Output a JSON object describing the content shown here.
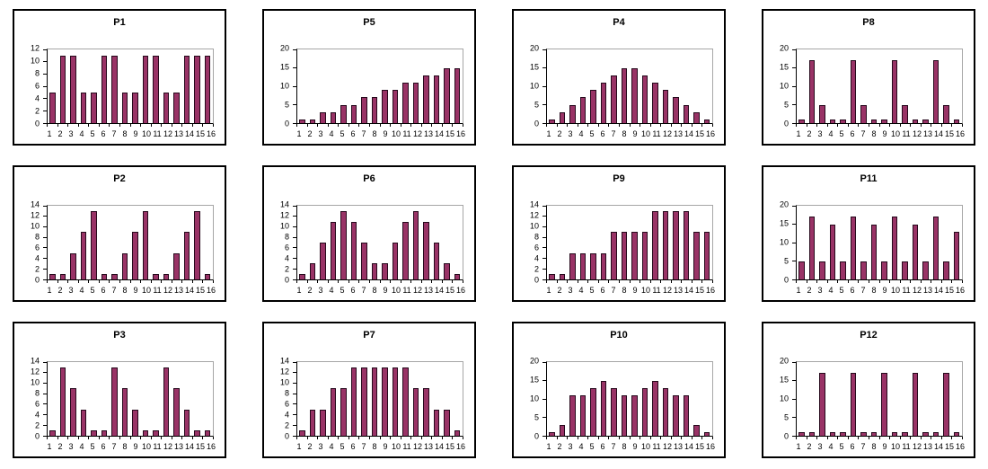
{
  "figure": {
    "description": "Grid of twelve small bar charts labeled P1 through P12",
    "columns": 4,
    "rows": 3,
    "colors": {
      "bar_fill": "#993366",
      "bar_border": "#26091c",
      "axis": "#000000",
      "plot_frame": "#a6a6a6",
      "panel_border": "#000000",
      "background": "#ffffff"
    }
  },
  "chart_data": [
    {
      "type": "bar",
      "title": "P1",
      "categories": [
        "1",
        "2",
        "3",
        "4",
        "5",
        "6",
        "7",
        "8",
        "9",
        "10",
        "11",
        "12",
        "13",
        "14",
        "15",
        "16"
      ],
      "values": [
        5,
        11,
        11,
        5,
        5,
        11,
        11,
        5,
        5,
        11,
        11,
        5,
        5,
        11,
        11,
        11
      ],
      "ylim": [
        0,
        12
      ],
      "yticks": [
        0,
        2,
        4,
        6,
        8,
        10,
        12
      ],
      "xlabel": "",
      "ylabel": "",
      "grid": false,
      "legend": false
    },
    {
      "type": "bar",
      "title": "P5",
      "categories": [
        "1",
        "2",
        "3",
        "4",
        "5",
        "6",
        "7",
        "8",
        "9",
        "10",
        "11",
        "12",
        "13",
        "14",
        "15",
        "16"
      ],
      "values": [
        1,
        1,
        3,
        3,
        5,
        5,
        7,
        7,
        9,
        9,
        11,
        11,
        13,
        13,
        15,
        15
      ],
      "ylim": [
        0,
        20
      ],
      "yticks": [
        0,
        5,
        10,
        15,
        20
      ],
      "xlabel": "",
      "ylabel": "",
      "grid": false,
      "legend": false
    },
    {
      "type": "bar",
      "title": "P4",
      "categories": [
        "1",
        "2",
        "3",
        "4",
        "5",
        "6",
        "7",
        "8",
        "9",
        "10",
        "11",
        "12",
        "13",
        "14",
        "15",
        "16"
      ],
      "values": [
        1,
        3,
        5,
        7,
        9,
        11,
        13,
        15,
        15,
        13,
        11,
        9,
        7,
        5,
        3,
        1
      ],
      "ylim": [
        0,
        20
      ],
      "yticks": [
        0,
        5,
        10,
        15,
        20
      ],
      "xlabel": "",
      "ylabel": "",
      "grid": false,
      "legend": false
    },
    {
      "type": "bar",
      "title": "P8",
      "categories": [
        "1",
        "2",
        "3",
        "4",
        "5",
        "6",
        "7",
        "8",
        "9",
        "10",
        "11",
        "12",
        "13",
        "14",
        "15",
        "16"
      ],
      "values": [
        1,
        17,
        5,
        1,
        1,
        17,
        5,
        1,
        1,
        17,
        5,
        1,
        1,
        17,
        5,
        1
      ],
      "ylim": [
        0,
        20
      ],
      "yticks": [
        0,
        5,
        10,
        15,
        20
      ],
      "xlabel": "",
      "ylabel": "",
      "grid": false,
      "legend": false
    },
    {
      "type": "bar",
      "title": "P2",
      "categories": [
        "1",
        "2",
        "3",
        "4",
        "5",
        "6",
        "7",
        "8",
        "9",
        "10",
        "11",
        "12",
        "13",
        "14",
        "15",
        "16"
      ],
      "values": [
        1,
        1,
        5,
        9,
        13,
        1,
        1,
        5,
        9,
        13,
        1,
        1,
        5,
        9,
        13,
        1
      ],
      "ylim": [
        0,
        14
      ],
      "yticks": [
        0,
        2,
        4,
        6,
        8,
        10,
        12,
        14
      ],
      "xlabel": "",
      "ylabel": "",
      "grid": false,
      "legend": false
    },
    {
      "type": "bar",
      "title": "P6",
      "categories": [
        "1",
        "2",
        "3",
        "4",
        "5",
        "6",
        "7",
        "8",
        "9",
        "10",
        "11",
        "12",
        "13",
        "14",
        "15",
        "16"
      ],
      "values": [
        1,
        3,
        7,
        11,
        13,
        11,
        7,
        3,
        3,
        7,
        11,
        13,
        11,
        7,
        3,
        1
      ],
      "ylim": [
        0,
        14
      ],
      "yticks": [
        0,
        2,
        4,
        6,
        8,
        10,
        12,
        14
      ],
      "xlabel": "",
      "ylabel": "",
      "grid": false,
      "legend": false
    },
    {
      "type": "bar",
      "title": "P9",
      "categories": [
        "1",
        "2",
        "3",
        "4",
        "5",
        "6",
        "7",
        "8",
        "9",
        "10",
        "11",
        "12",
        "13",
        "14",
        "15",
        "16"
      ],
      "values": [
        1,
        1,
        5,
        5,
        5,
        5,
        9,
        9,
        9,
        9,
        13,
        13,
        13,
        13,
        9,
        9
      ],
      "ylim": [
        0,
        14
      ],
      "yticks": [
        0,
        2,
        4,
        6,
        8,
        10,
        12,
        14
      ],
      "xlabel": "",
      "ylabel": "",
      "grid": false,
      "legend": false
    },
    {
      "type": "bar",
      "title": "P11",
      "categories": [
        "1",
        "2",
        "3",
        "4",
        "5",
        "6",
        "7",
        "8",
        "9",
        "10",
        "11",
        "12",
        "13",
        "14",
        "15",
        "16"
      ],
      "values": [
        5,
        17,
        5,
        15,
        5,
        17,
        5,
        15,
        5,
        17,
        5,
        15,
        5,
        17,
        5,
        13
      ],
      "ylim": [
        0,
        20
      ],
      "yticks": [
        0,
        5,
        10,
        15,
        20
      ],
      "xlabel": "",
      "ylabel": "",
      "grid": false,
      "legend": false
    },
    {
      "type": "bar",
      "title": "P3",
      "categories": [
        "1",
        "2",
        "3",
        "4",
        "5",
        "6",
        "7",
        "8",
        "9",
        "10",
        "11",
        "12",
        "13",
        "14",
        "15",
        "16"
      ],
      "values": [
        1,
        13,
        9,
        5,
        1,
        1,
        13,
        9,
        5,
        1,
        1,
        13,
        9,
        5,
        1,
        1
      ],
      "ylim": [
        0,
        14
      ],
      "yticks": [
        0,
        2,
        4,
        6,
        8,
        10,
        12,
        14
      ],
      "xlabel": "",
      "ylabel": "",
      "grid": false,
      "legend": false
    },
    {
      "type": "bar",
      "title": "P7",
      "categories": [
        "1",
        "2",
        "3",
        "4",
        "5",
        "6",
        "7",
        "8",
        "9",
        "10",
        "11",
        "12",
        "13",
        "14",
        "15",
        "16"
      ],
      "values": [
        1,
        5,
        5,
        9,
        9,
        13,
        13,
        13,
        13,
        13,
        13,
        9,
        9,
        5,
        5,
        1
      ],
      "ylim": [
        0,
        14
      ],
      "yticks": [
        0,
        2,
        4,
        6,
        8,
        10,
        12,
        14
      ],
      "xlabel": "",
      "ylabel": "",
      "grid": false,
      "legend": false
    },
    {
      "type": "bar",
      "title": "P10",
      "categories": [
        "1",
        "2",
        "3",
        "4",
        "5",
        "6",
        "7",
        "8",
        "9",
        "10",
        "11",
        "12",
        "13",
        "14",
        "15",
        "16"
      ],
      "values": [
        1,
        3,
        11,
        11,
        13,
        15,
        13,
        11,
        11,
        13,
        15,
        13,
        11,
        11,
        3,
        1
      ],
      "ylim": [
        0,
        20
      ],
      "yticks": [
        0,
        5,
        10,
        15,
        20
      ],
      "xlabel": "",
      "ylabel": "",
      "grid": false,
      "legend": false
    },
    {
      "type": "bar",
      "title": "P12",
      "categories": [
        "1",
        "2",
        "3",
        "4",
        "5",
        "6",
        "7",
        "8",
        "9",
        "10",
        "11",
        "12",
        "13",
        "14",
        "15",
        "16"
      ],
      "values": [
        1,
        1,
        17,
        1,
        1,
        17,
        1,
        1,
        17,
        1,
        1,
        17,
        1,
        1,
        17,
        1
      ],
      "ylim": [
        0,
        20
      ],
      "yticks": [
        0,
        5,
        10,
        15,
        20
      ],
      "xlabel": "",
      "ylabel": "",
      "grid": false,
      "legend": false
    }
  ]
}
